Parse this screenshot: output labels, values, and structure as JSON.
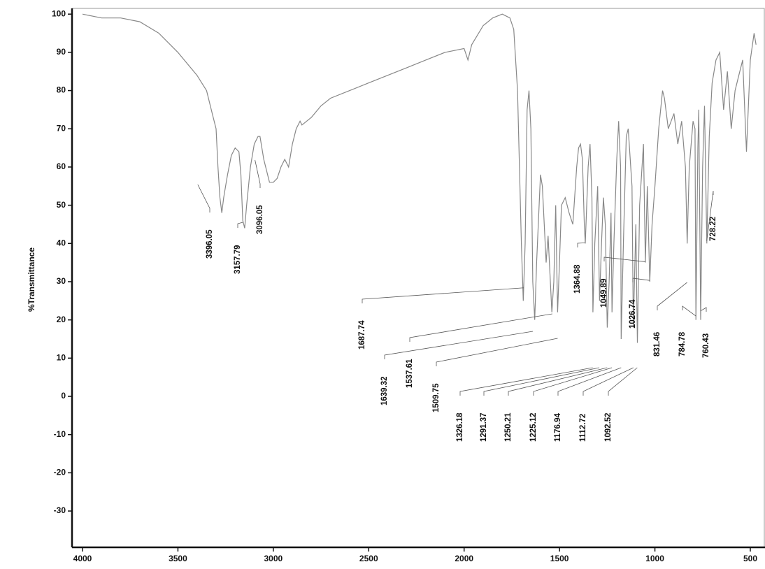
{
  "chart_data": {
    "type": "line",
    "y_label": "%Transmittance",
    "xlim": [
      4055,
      423
    ],
    "ylim": [
      -39.5,
      101.5
    ],
    "xticks": [
      4000,
      3500,
      3000,
      2500,
      2000,
      1500,
      1000,
      500
    ],
    "yticks": [
      100,
      90,
      80,
      70,
      60,
      50,
      40,
      30,
      20,
      10,
      0,
      -10,
      -20,
      -30
    ],
    "color": "#888888",
    "x": [
      4000,
      3900,
      3800,
      3700,
      3600,
      3500,
      3400,
      3350,
      3320,
      3300,
      3290,
      3280,
      3270,
      3260,
      3250,
      3240,
      3220,
      3200,
      3180,
      3170,
      3160,
      3150,
      3140,
      3120,
      3100,
      3080,
      3070,
      3050,
      3020,
      3000,
      2980,
      2960,
      2940,
      2920,
      2900,
      2880,
      2860,
      2850,
      2800,
      2750,
      2700,
      2600,
      2500,
      2400,
      2300,
      2200,
      2100,
      2000,
      1980,
      1960,
      1900,
      1850,
      1800,
      1760,
      1740,
      1720,
      1700,
      1690,
      1680,
      1670,
      1660,
      1650,
      1640,
      1630,
      1620,
      1600,
      1590,
      1580,
      1570,
      1560,
      1540,
      1530,
      1520,
      1510,
      1500,
      1490,
      1470,
      1450,
      1430,
      1410,
      1400,
      1390,
      1380,
      1370,
      1365,
      1350,
      1340,
      1330,
      1325,
      1315,
      1300,
      1290,
      1280,
      1270,
      1260,
      1250,
      1240,
      1230,
      1225,
      1215,
      1200,
      1190,
      1180,
      1177,
      1165,
      1150,
      1140,
      1120,
      1113,
      1100,
      1092,
      1080,
      1060,
      1050,
      1040,
      1027,
      1015,
      1000,
      980,
      960,
      950,
      930,
      900,
      880,
      860,
      840,
      831,
      820,
      800,
      790,
      785,
      775,
      770,
      760,
      750,
      740,
      728,
      715,
      700,
      680,
      660,
      640,
      620,
      600,
      580,
      560,
      540,
      520,
      500,
      480,
      470
    ],
    "values": [
      100,
      99,
      99,
      98,
      95,
      90,
      84,
      80,
      74,
      70,
      60,
      52,
      48,
      52,
      55,
      58,
      63,
      65,
      64,
      58,
      46,
      44,
      50,
      60,
      66,
      68,
      68,
      62,
      56,
      56,
      57,
      60,
      62,
      60,
      66,
      70,
      72,
      71,
      73,
      76,
      78,
      80,
      82,
      84,
      86,
      88,
      90,
      91,
      88,
      92,
      97,
      99,
      100,
      99,
      96,
      80,
      40,
      25,
      40,
      75,
      80,
      70,
      30,
      20,
      35,
      58,
      55,
      45,
      35,
      42,
      22,
      30,
      50,
      22,
      35,
      50,
      52,
      48,
      45,
      60,
      65,
      66,
      62,
      45,
      40,
      60,
      66,
      52,
      22,
      40,
      55,
      25,
      40,
      52,
      45,
      18,
      30,
      48,
      22,
      40,
      62,
      72,
      60,
      15,
      40,
      68,
      70,
      55,
      18,
      45,
      14,
      50,
      66,
      35,
      55,
      30,
      45,
      55,
      70,
      80,
      78,
      70,
      74,
      66,
      72,
      60,
      40,
      60,
      72,
      70,
      20,
      65,
      75,
      20,
      60,
      76,
      40,
      68,
      82,
      88,
      90,
      75,
      85,
      70,
      80,
      84,
      88,
      64,
      88,
      95,
      92
    ],
    "peaks": [
      3396.05,
      3157.79,
      3096.05,
      1687.74,
      1639.32,
      1537.61,
      1509.75,
      1364.88,
      1326.18,
      1291.37,
      1250.21,
      1225.12,
      1176.94,
      1112.72,
      1092.52,
      1049.89,
      1026.74,
      831.46,
      784.78,
      760.43,
      728.22
    ]
  }
}
